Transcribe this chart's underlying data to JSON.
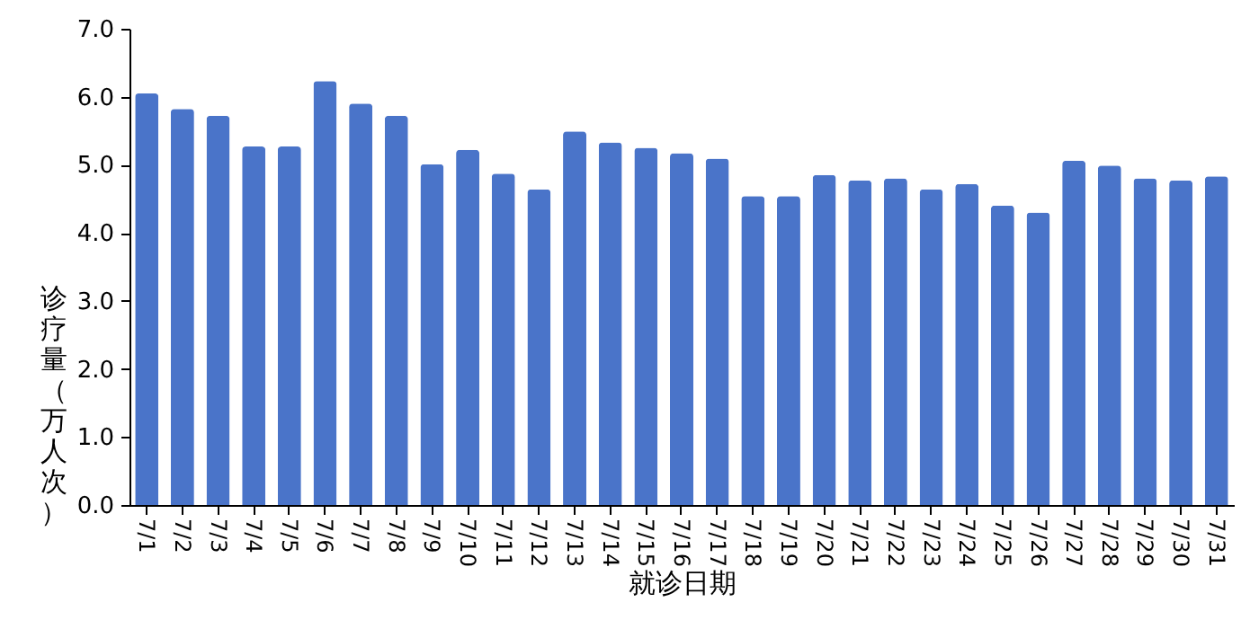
{
  "chart_data": {
    "type": "bar",
    "xlabel": "就诊日期",
    "ylabel": "诊疗量（万人次）",
    "categories": [
      "7/1",
      "7/2",
      "7/3",
      "7/4",
      "7/5",
      "7/6",
      "7/7",
      "7/8",
      "7/9",
      "7/10",
      "7/11",
      "7/12",
      "7/13",
      "7/14",
      "7/15",
      "7/16",
      "7/17",
      "7/18",
      "7/19",
      "7/20",
      "7/21",
      "7/22",
      "7/23",
      "7/24",
      "7/25",
      "7/26",
      "7/27",
      "7/28",
      "7/29",
      "7/30",
      "7/31"
    ],
    "values": [
      6.05,
      5.82,
      5.72,
      5.27,
      5.27,
      6.23,
      5.9,
      5.72,
      5.01,
      5.22,
      4.87,
      4.64,
      5.49,
      5.33,
      5.25,
      5.17,
      5.09,
      4.54,
      4.54,
      4.85,
      4.77,
      4.8,
      4.64,
      4.72,
      4.4,
      4.3,
      5.06,
      4.99,
      4.8,
      4.77,
      4.83
    ],
    "color": "#4a74c9",
    "ylim": [
      0,
      7
    ],
    "yticks": [
      {
        "value": 0,
        "label": "0.0"
      },
      {
        "value": 1,
        "label": "1.0"
      },
      {
        "value": 2,
        "label": "2.0"
      },
      {
        "value": 3,
        "label": "3.0"
      },
      {
        "value": 4,
        "label": "4.0"
      },
      {
        "value": 5,
        "label": "5.0"
      },
      {
        "value": 6,
        "label": "6.0"
      },
      {
        "value": 7,
        "label": "7.0"
      }
    ],
    "grid": false
  }
}
